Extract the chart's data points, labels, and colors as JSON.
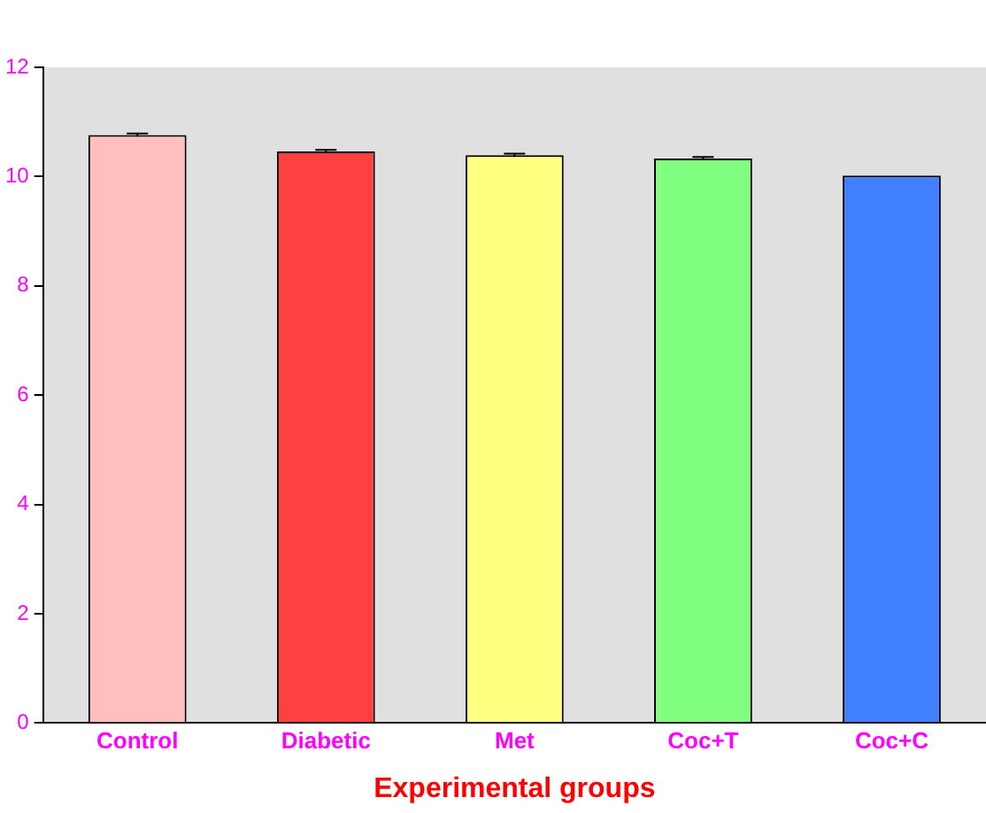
{
  "chart_data": {
    "type": "bar",
    "xlabel": "Experimental groups",
    "categories": [
      "Control",
      "Diabetic",
      "Met",
      "Coc+T",
      "Coc+C"
    ],
    "values": [
      10.76,
      10.46,
      10.39,
      10.33,
      10.02
    ],
    "errors": [
      0.03,
      0.03,
      0.03,
      0.03,
      null
    ],
    "colors": [
      "#ffbfbf",
      "#ff4040",
      "#ffff80",
      "#80ff80",
      "#4080ff"
    ],
    "ylim": [
      0,
      12
    ],
    "yticks": [
      0,
      2,
      4,
      6,
      8,
      10,
      12
    ],
    "grid": false,
    "legend": false
  }
}
